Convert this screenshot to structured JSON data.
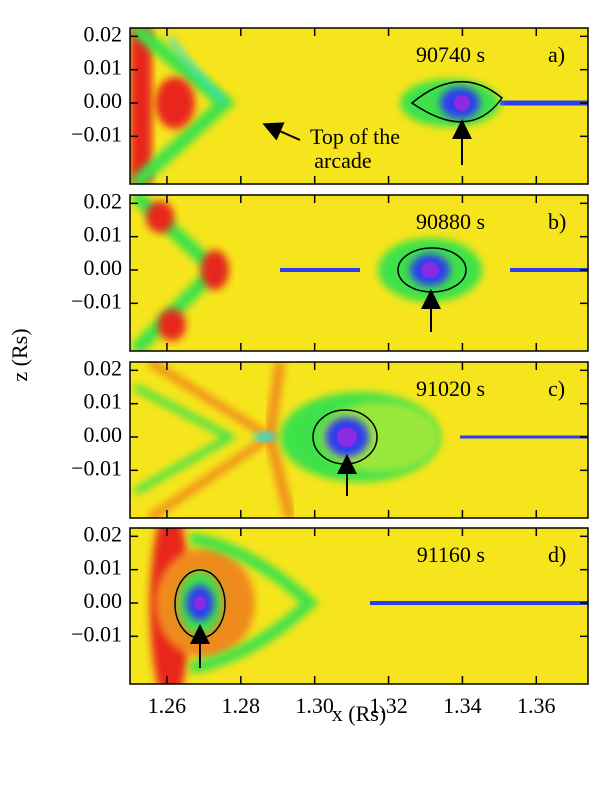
{
  "chart_data": [
    {
      "type": "heatmap",
      "time_label": "90740 s",
      "panel_label": "a)",
      "annotation": [
        "Top of the",
        "arcade"
      ],
      "xlim": [
        1.25,
        1.374
      ],
      "ylim": [
        -0.0243,
        0.0225
      ],
      "yticks": [
        0.02,
        0.01,
        {
          "value": 0,
          "label": "0.00"
        },
        {
          "value": -0.01,
          "label": "−0.01"
        }
      ]
    },
    {
      "type": "heatmap",
      "time_label": "90880 s",
      "panel_label": "b)",
      "xlim": [
        1.25,
        1.374
      ],
      "ylim": [
        -0.0243,
        0.0225
      ],
      "yticks": [
        0.02,
        0.01,
        {
          "value": 0,
          "label": "0.00"
        },
        {
          "value": -0.01,
          "label": "−0.01"
        }
      ]
    },
    {
      "type": "heatmap",
      "time_label": "91020 s",
      "panel_label": "c)",
      "xlim": [
        1.25,
        1.374
      ],
      "ylim": [
        -0.0243,
        0.0225
      ],
      "yticks": [
        0.02,
        0.01,
        {
          "value": 0,
          "label": "0.00"
        },
        {
          "value": -0.01,
          "label": "−0.01"
        }
      ]
    },
    {
      "type": "heatmap",
      "time_label": "91160 s",
      "panel_label": "d)",
      "xlim": [
        1.25,
        1.374
      ],
      "ylim": [
        -0.0243,
        0.0225
      ],
      "yticks": [
        0.02,
        0.01,
        {
          "value": 0,
          "label": "0.00"
        },
        {
          "value": -0.01,
          "label": "−0.01"
        }
      ],
      "xticks": [
        1.26,
        1.28,
        {
          "value": 1.3,
          "label": "1.30"
        },
        1.32,
        1.34,
        1.36
      ]
    }
  ],
  "shared": {
    "xlabel": "x (Rs)",
    "ylabel": "z (Rs)"
  }
}
